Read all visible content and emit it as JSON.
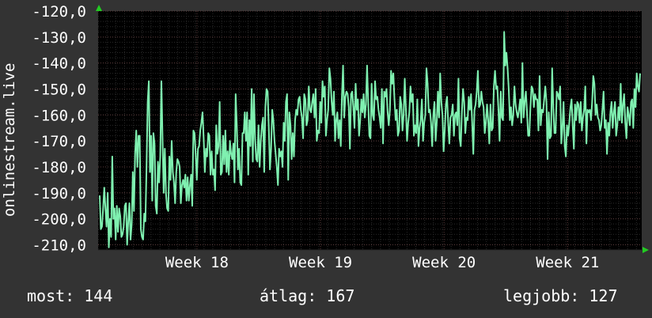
{
  "chart_data": {
    "type": "line",
    "title": "",
    "ylabel": "onlinestream.live",
    "xlabel": "",
    "ylim": [
      -212,
      -120
    ],
    "y_ticks": [
      -120,
      -130,
      -140,
      -150,
      -160,
      -170,
      -180,
      -190,
      -200,
      -210
    ],
    "y_tick_labels": [
      "-120,0",
      "-130,0",
      "-140,0",
      "-150,0",
      "-160,0",
      "-170,0",
      "-180,0",
      "-190,0",
      "-200,0",
      "-210,0"
    ],
    "x_range": [
      0,
      4.4
    ],
    "x_ticks": [
      {
        "label": "Week 18",
        "x": 0.8
      },
      {
        "label": "Week 19",
        "x": 1.8
      },
      {
        "label": "Week 20",
        "x": 2.8
      },
      {
        "label": "Week 21",
        "x": 3.8
      }
    ],
    "grid": true,
    "series": [
      {
        "color": "#7ff0b0",
        "values": [
          -191,
          -204,
          -203,
          -196,
          -188,
          -196,
          -203,
          -190,
          -211,
          -200,
          -207,
          -176,
          -200,
          -196,
          -208,
          -195,
          -205,
          -196,
          -199,
          -207,
          -206,
          -203,
          -195,
          -194,
          -210,
          -201,
          -194,
          -208,
          -202,
          -182,
          -197,
          -175,
          -166,
          -180,
          -168,
          -168,
          -204,
          -207,
          -208,
          -198,
          -201,
          -180,
          -155,
          -147,
          -182,
          -168,
          -193,
          -167,
          -171,
          -195,
          -198,
          -178,
          -186,
          -176,
          -147,
          -169,
          -190,
          -173,
          -190,
          -196,
          -197,
          -176,
          -185,
          -170,
          -182,
          -186,
          -194,
          -182,
          -177,
          -178,
          -180,
          -194,
          -187,
          -185,
          -188,
          -183,
          -193,
          -184,
          -193,
          -187,
          -183,
          -195,
          -166,
          -167,
          -175,
          -185,
          -173,
          -172,
          -166,
          -163,
          -159,
          -169,
          -182,
          -173,
          -176,
          -167,
          -168,
          -183,
          -174,
          -183,
          -181,
          -189,
          -164,
          -175,
          -172,
          -155,
          -183,
          -182,
          -168,
          -179,
          -166,
          -182,
          -174,
          -183,
          -170,
          -175,
          -177,
          -171,
          -186,
          -152,
          -164,
          -181,
          -173,
          -186,
          -187,
          -167,
          -167,
          -159,
          -170,
          -159,
          -183,
          -162,
          -172,
          -150,
          -178,
          -152,
          -169,
          -177,
          -178,
          -164,
          -180,
          -170,
          -164,
          -161,
          -182,
          -157,
          -150,
          -151,
          -165,
          -181,
          -173,
          -158,
          -162,
          -170,
          -175,
          -180,
          -187,
          -173,
          -176,
          -174,
          -180,
          -163,
          -170,
          -155,
          -152,
          -185,
          -159,
          -164,
          -177,
          -167,
          -176,
          -162,
          -158,
          -160,
          -154,
          -153,
          -158,
          -161,
          -169,
          -152,
          -154,
          -164,
          -162,
          -149,
          -158,
          -159,
          -155,
          -152,
          -161,
          -150,
          -170,
          -166,
          -167,
          -155,
          -163,
          -147,
          -153,
          -149,
          -168,
          -162,
          -158,
          -142,
          -146,
          -155,
          -160,
          -151,
          -170,
          -162,
          -159,
          -169,
          -162,
          -172,
          -153,
          -141,
          -161,
          -153,
          -151,
          -152,
          -157,
          -173,
          -152,
          -151,
          -157,
          -165,
          -148,
          -158,
          -154,
          -168,
          -162,
          -154,
          -159,
          -152,
          -161,
          -156,
          -141,
          -155,
          -168,
          -169,
          -148,
          -160,
          -162,
          -147,
          -154,
          -153,
          -158,
          -161,
          -165,
          -150,
          -171,
          -151,
          -153,
          -150,
          -159,
          -164,
          -158,
          -143,
          -148,
          -144,
          -154,
          -162,
          -158,
          -168,
          -166,
          -153,
          -156,
          -166,
          -160,
          -146,
          -158,
          -170,
          -163,
          -159,
          -149,
          -155,
          -152,
          -168,
          -164,
          -167,
          -154,
          -172,
          -165,
          -162,
          -154,
          -170,
          -163,
          -160,
          -142,
          -148,
          -159,
          -158,
          -163,
          -172,
          -160,
          -155,
          -170,
          -163,
          -151,
          -161,
          -144,
          -155,
          -160,
          -174,
          -166,
          -156,
          -153,
          -163,
          -171,
          -161,
          -160,
          -156,
          -168,
          -160,
          -159,
          -164,
          -146,
          -169,
          -172,
          -159,
          -150,
          -155,
          -167,
          -161,
          -162,
          -153,
          -158,
          -152,
          -163,
          -175,
          -158,
          -156,
          -151,
          -143,
          -157,
          -156,
          -151,
          -155,
          -157,
          -167,
          -163,
          -156,
          -162,
          -171,
          -156,
          -166,
          -165,
          -149,
          -143,
          -150,
          -149,
          -158,
          -170,
          -151,
          -161,
          -162,
          -128,
          -141,
          -136,
          -142,
          -150,
          -162,
          -157,
          -164,
          -160,
          -149,
          -156,
          -159,
          -161,
          -158,
          -154,
          -163,
          -140,
          -161,
          -155,
          -151,
          -159,
          -168,
          -168,
          -157,
          -149,
          -150,
          -157,
          -152,
          -154,
          -154,
          -166,
          -145,
          -164,
          -158,
          -159,
          -154,
          -149,
          -155,
          -177,
          -159,
          -169,
          -168,
          -142,
          -157,
          -167,
          -167,
          -151,
          -152,
          -154,
          -149,
          -171,
          -165,
          -155,
          -172,
          -176,
          -164,
          -168,
          -163,
          -157,
          -154,
          -164,
          -173,
          -156,
          -162,
          -155,
          -156,
          -163,
          -155,
          -166,
          -161,
          -158,
          -149,
          -171,
          -158,
          -159,
          -158,
          -162,
          -155,
          -145,
          -148,
          -160,
          -156,
          -161,
          -162,
          -166,
          -164,
          -158,
          -151,
          -165,
          -162,
          -175,
          -163,
          -168,
          -159,
          -155,
          -165,
          -159,
          -155,
          -168,
          -164,
          -157,
          -162,
          -148,
          -163,
          -156,
          -152,
          -163,
          -169,
          -157,
          -160,
          -164,
          -155,
          -154,
          -165,
          -150,
          -157,
          -144,
          -149,
          -151,
          -144
        ]
      }
    ]
  },
  "stats": {
    "current": "most: 144",
    "average": "átlag: 167",
    "best": "legjobb: 127"
  }
}
